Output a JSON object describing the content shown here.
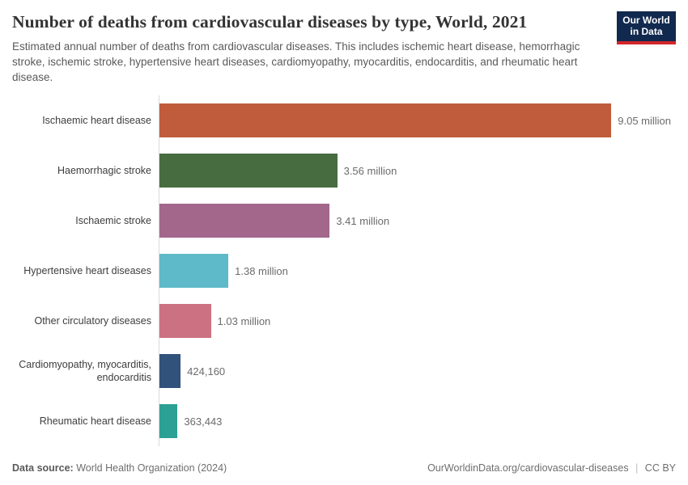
{
  "header": {
    "title": "Number of deaths from cardiovascular diseases by type, World, 2021",
    "subtitle": "Estimated annual number of deaths from cardiovascular diseases. This includes ischemic heart disease, hemorrhagic stroke, ischemic stroke, hypertensive heart diseases, cardiomyopathy, myocarditis, endocarditis, and rheumatic heart disease.",
    "logo": {
      "line1": "Our World",
      "line2": "in Data",
      "bg_color": "#12294F",
      "accent_color": "#D2262B"
    }
  },
  "chart_data": {
    "type": "bar",
    "orientation": "horizontal",
    "title": "Number of deaths from cardiovascular diseases by type, World, 2021",
    "categories": [
      "Ischaemic heart disease",
      "Haemorrhagic stroke",
      "Ischaemic stroke",
      "Hypertensive heart diseases",
      "Other circulatory diseases",
      "Cardiomyopathy, myocarditis, endocarditis",
      "Rheumatic heart disease"
    ],
    "values": [
      9050000,
      3560000,
      3410000,
      1380000,
      1030000,
      424160,
      363443
    ],
    "value_labels": [
      "9.05 million",
      "3.56 million",
      "3.41 million",
      "1.38 million",
      "1.03 million",
      "424,160",
      "363,443"
    ],
    "colors": [
      "#C05C3B",
      "#476C40",
      "#A2678B",
      "#5EB9C8",
      "#CC7181",
      "#31527B",
      "#2CA094"
    ],
    "xlim": [
      0,
      9050000
    ],
    "grid": false,
    "legend": "none",
    "axis_line_color": "#d9d9d9"
  },
  "footer": {
    "source_label": "Data source:",
    "source_value": "World Health Organization (2024)",
    "link": "OurWorldinData.org/cardiovascular-diseases",
    "separator": "|",
    "license": "CC BY"
  }
}
